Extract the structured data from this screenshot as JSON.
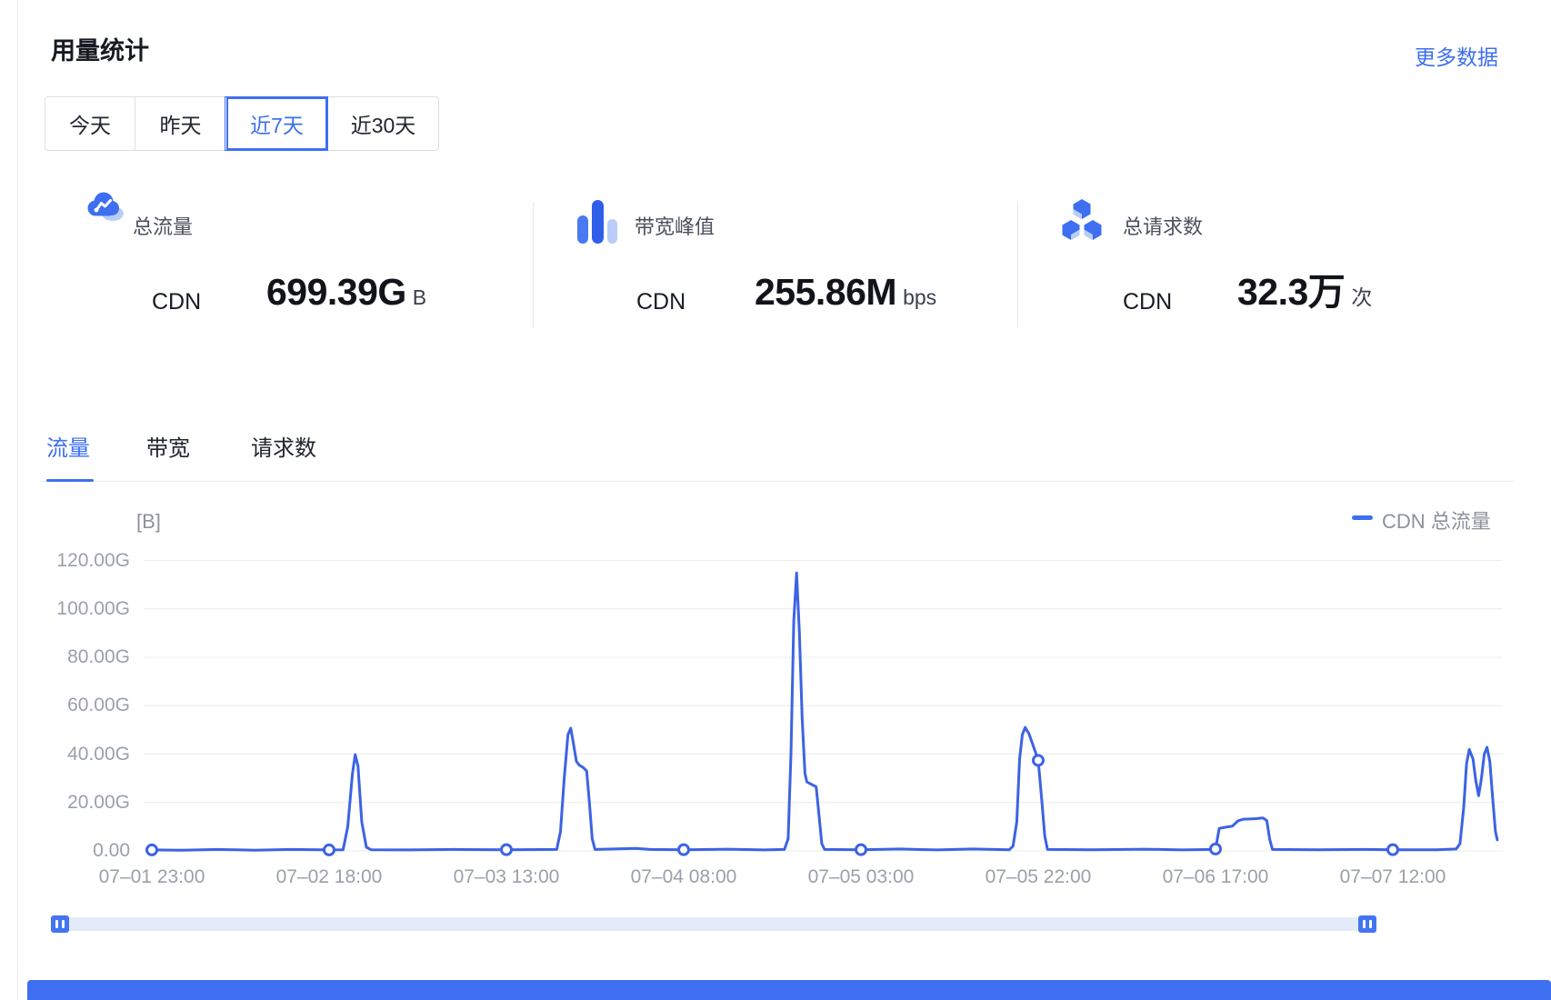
{
  "header": {
    "title": "用量统计",
    "more_link": "更多数据"
  },
  "range_tabs": [
    {
      "label": "今天",
      "selected": false
    },
    {
      "label": "昨天",
      "selected": false
    },
    {
      "label": "近7天",
      "selected": true
    },
    {
      "label": "近30天",
      "selected": false
    }
  ],
  "stats": [
    {
      "icon": "cloud-traffic-icon",
      "label": "总流量",
      "product": "CDN",
      "value": "699.39G",
      "unit": "B"
    },
    {
      "icon": "bandwidth-bars-icon",
      "label": "带宽峰值",
      "product": "CDN",
      "value": "255.86M",
      "unit": "bps"
    },
    {
      "icon": "request-cubes-icon",
      "label": "总请求数",
      "product": "CDN",
      "value": "32.3万",
      "unit": "次"
    }
  ],
  "metric_tabs": [
    {
      "label": "流量",
      "selected": true
    },
    {
      "label": "带宽",
      "selected": false
    },
    {
      "label": "请求数",
      "selected": false
    }
  ],
  "chart_data": {
    "type": "line",
    "unit_label": "[B]",
    "legend": [
      {
        "name": "CDN 总流量",
        "color": "#3D6FF0"
      }
    ],
    "ylim": [
      0,
      120
    ],
    "grid": true,
    "legend_position": "top-right",
    "yticks": [
      {
        "label": "120.00G",
        "value": 120
      },
      {
        "label": "100.00G",
        "value": 100
      },
      {
        "label": "80.00G",
        "value": 80
      },
      {
        "label": "60.00G",
        "value": 60
      },
      {
        "label": "40.00G",
        "value": 40
      },
      {
        "label": "20.00G",
        "value": 20
      },
      {
        "label": "0.00",
        "value": 0
      }
    ],
    "xticks": [
      {
        "label": "07–01 23:00",
        "hour": 0
      },
      {
        "label": "07–02 18:00",
        "hour": 19
      },
      {
        "label": "07–03 13:00",
        "hour": 38
      },
      {
        "label": "07–04 08:00",
        "hour": 57
      },
      {
        "label": "07–05 03:00",
        "hour": 76
      },
      {
        "label": "07–05 22:00",
        "hour": 95
      },
      {
        "label": "07–06 17:00",
        "hour": 114
      },
      {
        "label": "07–07 12:00",
        "hour": 133
      }
    ],
    "series": [
      {
        "name": "CDN 总流量",
        "color": "#3C63E4",
        "points": [
          [
            0,
            0.4
          ],
          [
            3.2,
            0.3
          ],
          [
            7.1,
            0.6
          ],
          [
            11,
            0.3
          ],
          [
            14.9,
            0.6
          ],
          [
            19,
            0.4
          ],
          [
            20.5,
            0.5
          ],
          [
            21,
            10
          ],
          [
            21.5,
            32
          ],
          [
            21.8,
            39.8
          ],
          [
            22.1,
            35
          ],
          [
            22.5,
            12
          ],
          [
            23,
            1.5
          ],
          [
            23.5,
            0.5
          ],
          [
            27.6,
            0.4
          ],
          [
            32.4,
            0.6
          ],
          [
            38,
            0.5
          ],
          [
            43.4,
            0.6
          ],
          [
            43.8,
            8
          ],
          [
            44.2,
            30
          ],
          [
            44.6,
            48
          ],
          [
            44.9,
            50.7
          ],
          [
            45.2,
            44
          ],
          [
            45.5,
            37
          ],
          [
            45.8,
            35.5
          ],
          [
            46.2,
            34.5
          ],
          [
            46.6,
            33
          ],
          [
            46.9,
            20
          ],
          [
            47.2,
            5
          ],
          [
            47.5,
            0.6
          ],
          [
            51.9,
            1
          ],
          [
            53.4,
            0.6
          ],
          [
            57,
            0.5
          ],
          [
            61.7,
            0.7
          ],
          [
            65.6,
            0.4
          ],
          [
            67.8,
            0.6
          ],
          [
            68.2,
            5
          ],
          [
            68.5,
            40
          ],
          [
            68.8,
            95
          ],
          [
            69.1,
            114.8
          ],
          [
            69.4,
            90
          ],
          [
            69.7,
            55
          ],
          [
            70,
            32
          ],
          [
            70.2,
            28.5
          ],
          [
            70.7,
            27.5
          ],
          [
            71.2,
            26.5
          ],
          [
            71.5,
            15
          ],
          [
            71.8,
            3
          ],
          [
            72.1,
            0.6
          ],
          [
            76,
            0.5
          ],
          [
            80.2,
            0.8
          ],
          [
            84.1,
            0.4
          ],
          [
            88,
            0.8
          ],
          [
            91.9,
            0.5
          ],
          [
            92.3,
            2
          ],
          [
            92.7,
            12
          ],
          [
            93,
            38
          ],
          [
            93.3,
            48
          ],
          [
            93.6,
            51
          ],
          [
            94,
            48.5
          ],
          [
            94.5,
            43
          ],
          [
            95,
            37.4
          ],
          [
            95.4,
            20
          ],
          [
            95.7,
            6
          ],
          [
            96,
            0.6
          ],
          [
            100.7,
            0.5
          ],
          [
            106.5,
            0.7
          ],
          [
            110.4,
            0.4
          ],
          [
            113.7,
            0.6
          ],
          [
            114,
            0.8
          ],
          [
            114.4,
            9.3
          ],
          [
            115.1,
            9.8
          ],
          [
            115.8,
            10.2
          ],
          [
            116.4,
            12.4
          ],
          [
            117,
            13.1
          ],
          [
            118.2,
            13.3
          ],
          [
            119.1,
            13.6
          ],
          [
            119.5,
            12.5
          ],
          [
            119.8,
            5
          ],
          [
            120.1,
            0.6
          ],
          [
            125,
            0.5
          ],
          [
            129.9,
            0.6
          ],
          [
            133,
            0.5
          ],
          [
            137.7,
            0.5
          ],
          [
            139.8,
            0.8
          ],
          [
            140.2,
            3
          ],
          [
            140.6,
            18
          ],
          [
            140.9,
            36
          ],
          [
            141.2,
            41.9
          ],
          [
            141.6,
            38
          ],
          [
            141.9,
            29
          ],
          [
            142.2,
            22.8
          ],
          [
            142.5,
            30
          ],
          [
            142.8,
            40
          ],
          [
            143.1,
            42.8
          ],
          [
            143.4,
            37
          ],
          [
            143.7,
            22
          ],
          [
            144,
            8
          ],
          [
            144.2,
            4.6
          ]
        ],
        "markers": [
          [
            0,
            0.4
          ],
          [
            19,
            0.4
          ],
          [
            38,
            0.5
          ],
          [
            57,
            0.5
          ],
          [
            76,
            0.5
          ],
          [
            95,
            37.4
          ],
          [
            114,
            0.8
          ],
          [
            133,
            0.5
          ]
        ]
      }
    ]
  },
  "colors": {
    "accent": "#3D6FF0",
    "line": "#3C63E4",
    "grid": "#EBECEF",
    "icon_light": "#B9CDF8",
    "slider_track": "#E3EAF9",
    "slider_handle": "#4374F2"
  }
}
